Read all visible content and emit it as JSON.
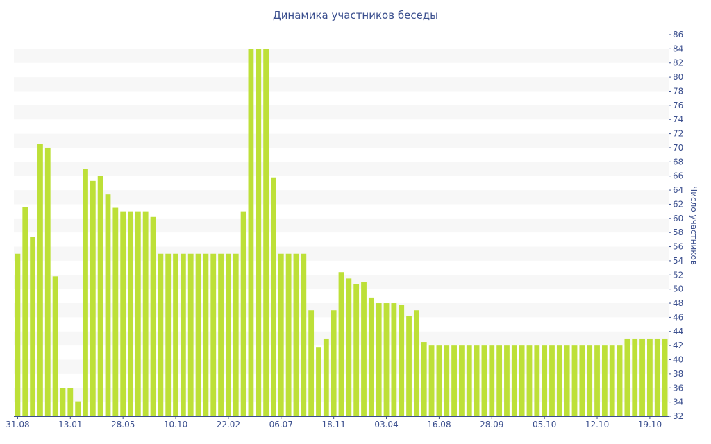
{
  "chart_data": {
    "type": "bar",
    "title": "Динамика участников беседы",
    "xlabel": "",
    "ylabel": "Число участников",
    "ylim": [
      32,
      86
    ],
    "y_ticks": [
      32,
      34,
      36,
      38,
      40,
      42,
      44,
      46,
      48,
      50,
      52,
      54,
      56,
      58,
      60,
      62,
      64,
      66,
      68,
      70,
      72,
      74,
      76,
      78,
      80,
      82,
      84,
      86
    ],
    "y_axis_position": "right",
    "x_tick_labels": [
      {
        "label": "31.08",
        "index": 0
      },
      {
        "label": "13.01",
        "index": 7
      },
      {
        "label": "28.05",
        "index": 14
      },
      {
        "label": "10.10",
        "index": 21
      },
      {
        "label": "22.02",
        "index": 28
      },
      {
        "label": "06.07",
        "index": 35
      },
      {
        "label": "18.11",
        "index": 42
      },
      {
        "label": "03.04",
        "index": 49
      },
      {
        "label": "16.08",
        "index": 56
      },
      {
        "label": "28.09",
        "index": 63
      },
      {
        "label": "05.10",
        "index": 70
      },
      {
        "label": "12.10",
        "index": 77
      },
      {
        "label": "19.10",
        "index": 84
      }
    ],
    "values": [
      55,
      61.6,
      57.4,
      70.5,
      70,
      51.8,
      36,
      36,
      34.1,
      67,
      65.3,
      66,
      63.4,
      61.5,
      61,
      61,
      61,
      61,
      60.2,
      55,
      55,
      55,
      55,
      55,
      55,
      55,
      55,
      55,
      55,
      55,
      61,
      84,
      84,
      84,
      65.8,
      55,
      55,
      55,
      55,
      47,
      41.8,
      43,
      47,
      52.4,
      51.5,
      50.7,
      51,
      48.8,
      48,
      48,
      48,
      47.8,
      46.2,
      47,
      42.5,
      42,
      42,
      42,
      42,
      42,
      42,
      42,
      42,
      42,
      42,
      42,
      42,
      42,
      42,
      42,
      42,
      42,
      42,
      42,
      42,
      42,
      42,
      42,
      42,
      42,
      42,
      43,
      43,
      43,
      43,
      43,
      43
    ],
    "bar_color": "#bde038",
    "band_color": "#f7f7f7",
    "text_color": "#3b4f8e",
    "grid": true,
    "legend": "none"
  }
}
